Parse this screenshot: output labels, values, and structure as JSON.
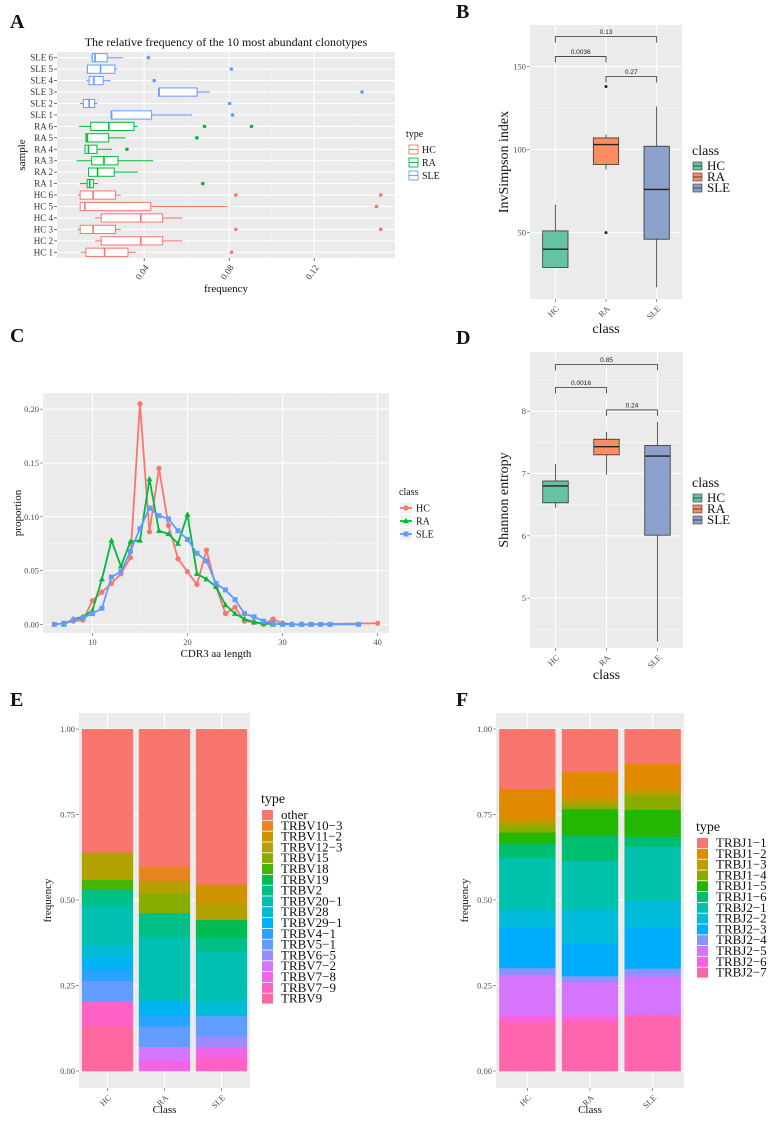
{
  "panel_labels": [
    "A",
    "B",
    "C",
    "D",
    "E",
    "F"
  ],
  "chart_data": [
    {
      "id": "A",
      "type": "boxplot-horizontal",
      "title": "The relative frequency of the 10 most abundant clonotypes",
      "xlabel": "frequency",
      "ylabel": "sample",
      "xlim": [
        -0.001,
        0.158
      ],
      "xticks": [
        0.04,
        0.08,
        0.12
      ],
      "xtick_labels": [
        "0.04",
        "0.08",
        "0.12"
      ],
      "grid": true,
      "legend": {
        "title": "type",
        "position": "right",
        "entries": [
          {
            "label": "HC",
            "color": "#F8766D"
          },
          {
            "label": "RA",
            "color": "#00BA38"
          },
          {
            "label": "SLE",
            "color": "#619CFF"
          }
        ]
      },
      "rows": [
        {
          "sample": "SLE 6",
          "type": "SLE",
          "lo": 0.0149,
          "q1": 0.0156,
          "med": 0.0169,
          "q3": 0.0226,
          "hi": 0.03,
          "outliers": [
            0.042
          ]
        },
        {
          "sample": "SLE 5",
          "type": "SLE",
          "lo": 0.013,
          "q1": 0.0133,
          "med": 0.0195,
          "q3": 0.0262,
          "hi": 0.0273,
          "outliers": [
            0.081
          ]
        },
        {
          "sample": "SLE 4",
          "type": "SLE",
          "lo": 0.0127,
          "q1": 0.0141,
          "med": 0.0164,
          "q3": 0.0207,
          "hi": 0.0242,
          "outliers": [
            0.0447
          ]
        },
        {
          "sample": "SLE 3",
          "type": "SLE",
          "lo": 0.0468,
          "q1": 0.0468,
          "med": 0.047,
          "q3": 0.0649,
          "hi": 0.071,
          "outliers": [
            0.1425
          ]
        },
        {
          "sample": "SLE 2",
          "type": "SLE",
          "lo": 0.0098,
          "q1": 0.0114,
          "med": 0.0141,
          "q3": 0.0167,
          "hi": 0.018,
          "outliers": [
            0.0802
          ]
        },
        {
          "sample": "SLE 1",
          "type": "SLE",
          "lo": 0.0245,
          "q1": 0.0245,
          "med": 0.0247,
          "q3": 0.0435,
          "hi": 0.0626,
          "outliers": [
            0.0816
          ]
        },
        {
          "sample": "RA 6",
          "type": "RA",
          "lo": 0.0094,
          "q1": 0.0149,
          "med": 0.0234,
          "q3": 0.0352,
          "hi": 0.0369,
          "outliers": [
            0.0684,
            0.0905
          ]
        },
        {
          "sample": "RA 5",
          "type": "RA",
          "lo": 0.0126,
          "q1": 0.0126,
          "med": 0.0133,
          "q3": 0.0233,
          "hi": 0.0312,
          "outliers": [
            0.0648
          ]
        },
        {
          "sample": "RA 4",
          "type": "RA",
          "lo": 0.0118,
          "q1": 0.0122,
          "med": 0.0138,
          "q3": 0.0178,
          "hi": 0.0249,
          "outliers": [
            0.0319
          ]
        },
        {
          "sample": "RA 3",
          "type": "RA",
          "lo": 0.0082,
          "q1": 0.0153,
          "med": 0.0211,
          "q3": 0.0277,
          "hi": 0.0442,
          "outliers": []
        },
        {
          "sample": "RA 2",
          "type": "RA",
          "lo": 0.0138,
          "q1": 0.0138,
          "med": 0.0181,
          "q3": 0.0259,
          "hi": 0.037,
          "outliers": []
        },
        {
          "sample": "RA 1",
          "type": "RA",
          "lo": 0.0098,
          "q1": 0.0132,
          "med": 0.0144,
          "q3": 0.0161,
          "hi": 0.0184,
          "outliers": [
            0.0676
          ]
        },
        {
          "sample": "HC 6",
          "type": "HC",
          "lo": 0.0087,
          "q1": 0.0099,
          "med": 0.016,
          "q3": 0.0265,
          "hi": 0.029,
          "outliers": [
            0.0831,
            0.1513
          ]
        },
        {
          "sample": "HC 5",
          "type": "HC",
          "lo": 0.0099,
          "q1": 0.0099,
          "med": 0.0121,
          "q3": 0.0431,
          "hi": 0.0792,
          "outliers": [
            0.1493
          ]
        },
        {
          "sample": "HC 4",
          "type": "HC",
          "lo": 0.0169,
          "q1": 0.0198,
          "med": 0.0384,
          "q3": 0.0487,
          "hi": 0.058,
          "outliers": []
        },
        {
          "sample": "HC 3",
          "type": "HC",
          "lo": 0.0087,
          "q1": 0.0099,
          "med": 0.016,
          "q3": 0.0265,
          "hi": 0.029,
          "outliers": [
            0.0831,
            0.1513
          ]
        },
        {
          "sample": "HC 2",
          "type": "HC",
          "lo": 0.0169,
          "q1": 0.0198,
          "med": 0.0384,
          "q3": 0.0487,
          "hi": 0.058,
          "outliers": []
        },
        {
          "sample": "HC 1",
          "type": "HC",
          "lo": 0.0102,
          "q1": 0.0126,
          "med": 0.0214,
          "q3": 0.0324,
          "hi": 0.0361,
          "outliers": [
            0.0811
          ]
        }
      ]
    },
    {
      "id": "B",
      "type": "boxplot",
      "xlabel": "class",
      "ylabel": "InvSimpson index",
      "ylim": [
        10,
        175
      ],
      "yticks": [
        50,
        100,
        150
      ],
      "categories": [
        "HC",
        "RA",
        "SLE"
      ],
      "legend": {
        "title": "class",
        "position": "right",
        "entries": [
          {
            "label": "HC",
            "color": "#66C2A5"
          },
          {
            "label": "RA",
            "color": "#FC8D62"
          },
          {
            "label": "SLE",
            "color": "#8DA0CB"
          }
        ]
      },
      "boxes": [
        {
          "class": "HC",
          "lo": 29,
          "q1": 29,
          "med": 40,
          "q3": 51,
          "hi": 67,
          "outliers": []
        },
        {
          "class": "RA",
          "lo": 88,
          "q1": 91,
          "med": 103,
          "q3": 107,
          "hi": 109,
          "outliers": [
            138,
            50
          ]
        },
        {
          "class": "SLE",
          "lo": 17,
          "q1": 46,
          "med": 76,
          "q3": 102,
          "hi": 126,
          "outliers": []
        }
      ],
      "comparisons": [
        {
          "from": "HC",
          "to": "SLE",
          "p": "0.13",
          "y": 168
        },
        {
          "from": "HC",
          "to": "RA",
          "p": "0.0036",
          "y": 156
        },
        {
          "from": "RA",
          "to": "SLE",
          "p": "0.27",
          "y": 144
        }
      ]
    },
    {
      "id": "C",
      "type": "line",
      "xlabel": "CDR3 aa length",
      "ylabel": "proportion",
      "xlim": [
        4.8,
        41.2
      ],
      "ylim": [
        -0.008,
        0.215
      ],
      "xticks": [
        10,
        20,
        30,
        40
      ],
      "yticks": [
        0.0,
        0.05,
        0.1,
        0.15,
        0.2
      ],
      "ytick_labels": [
        "0.00",
        "0.05",
        "0.10",
        "0.15",
        "0.20"
      ],
      "legend": {
        "title": "class",
        "position": "right"
      },
      "series": [
        {
          "name": "HC",
          "color": "#F8766D",
          "marker": "circle",
          "x": [
            7,
            8,
            9,
            10,
            11,
            12,
            13,
            14,
            15,
            16,
            17,
            18,
            19,
            20,
            21,
            22,
            23,
            24,
            25,
            26,
            27,
            28,
            29,
            30,
            31,
            40
          ],
          "y": [
            0.001,
            0.003,
            0.004,
            0.022,
            0.03,
            0.038,
            0.047,
            0.062,
            0.205,
            0.086,
            0.145,
            0.092,
            0.061,
            0.049,
            0.037,
            0.069,
            0.035,
            0.01,
            0.016,
            0.003,
            0.002,
            0.0,
            0.005,
            0.001,
            0.0,
            0.001
          ]
        },
        {
          "name": "RA",
          "color": "#00BA38",
          "marker": "triangle",
          "x": [
            7,
            8,
            9,
            10,
            11,
            12,
            13,
            14,
            15,
            16,
            17,
            18,
            19,
            20,
            21,
            22,
            23,
            24,
            25,
            26,
            27,
            28,
            29,
            30,
            31,
            32,
            33
          ],
          "y": [
            0.0,
            0.005,
            0.007,
            0.013,
            0.042,
            0.078,
            0.054,
            0.077,
            0.078,
            0.135,
            0.087,
            0.084,
            0.075,
            0.102,
            0.047,
            0.042,
            0.035,
            0.018,
            0.01,
            0.005,
            0.002,
            0.001,
            0.0,
            0.001,
            0.0,
            0.0,
            0.0
          ]
        },
        {
          "name": "SLE",
          "color": "#619CFF",
          "marker": "square",
          "x": [
            6,
            7,
            8,
            9,
            10,
            11,
            12,
            13,
            14,
            15,
            16,
            17,
            18,
            19,
            20,
            21,
            22,
            23,
            24,
            25,
            26,
            27,
            28,
            29,
            30,
            31,
            32,
            33,
            34,
            35,
            38
          ],
          "y": [
            0.0,
            0.001,
            0.004,
            0.006,
            0.01,
            0.015,
            0.044,
            0.049,
            0.068,
            0.089,
            0.108,
            0.101,
            0.098,
            0.087,
            0.079,
            0.066,
            0.059,
            0.038,
            0.032,
            0.023,
            0.01,
            0.007,
            0.003,
            0.001,
            0.0,
            0.0,
            0.0,
            0.0,
            0.0,
            0.0,
            0.0
          ]
        }
      ]
    },
    {
      "id": "D",
      "type": "boxplot",
      "xlabel": "class",
      "ylabel": "Shannon entropy",
      "ylim": [
        4.2,
        8.95
      ],
      "yticks": [
        5,
        6,
        7,
        8
      ],
      "categories": [
        "HC",
        "RA",
        "SLE"
      ],
      "legend": {
        "title": "class",
        "position": "right",
        "entries": [
          {
            "label": "HC",
            "color": "#66C2A5"
          },
          {
            "label": "RA",
            "color": "#FC8D62"
          },
          {
            "label": "SLE",
            "color": "#8DA0CB"
          }
        ]
      },
      "boxes": [
        {
          "class": "HC",
          "lo": 6.45,
          "q1": 6.53,
          "med": 6.8,
          "q3": 6.88,
          "hi": 7.15,
          "outliers": []
        },
        {
          "class": "RA",
          "lo": 6.98,
          "q1": 7.3,
          "med": 7.43,
          "q3": 7.55,
          "hi": 7.67,
          "outliers": []
        },
        {
          "class": "SLE",
          "lo": 4.3,
          "q1": 6.01,
          "med": 7.28,
          "q3": 7.45,
          "hi": 7.83,
          "outliers": []
        }
      ],
      "comparisons": [
        {
          "from": "HC",
          "to": "SLE",
          "p": "0.85",
          "y": 8.75
        },
        {
          "from": "HC",
          "to": "RA",
          "p": "0.0016",
          "y": 8.38
        },
        {
          "from": "RA",
          "to": "SLE",
          "p": "0.24",
          "y": 8.02
        }
      ]
    },
    {
      "id": "E",
      "type": "bar-stacked",
      "xlabel": "Class",
      "ylabel": "frequency",
      "ylim": [
        0,
        1
      ],
      "yticks": [
        0,
        0.25,
        0.5,
        0.75,
        1.0
      ],
      "ytick_labels": [
        "0.00",
        "0.25",
        "0.50",
        "0.75",
        "1.00"
      ],
      "categories": [
        "HC",
        "RA",
        "SLE"
      ],
      "legend": {
        "title": "type",
        "position": "right"
      },
      "types": [
        {
          "name": "other",
          "color": "#F8766D"
        },
        {
          "name": "TRBV10−3",
          "color": "#E7851E"
        },
        {
          "name": "TRBV11−2",
          "color": "#D09400"
        },
        {
          "name": "TRBV12−3",
          "color": "#B2A100"
        },
        {
          "name": "TRBV15",
          "color": "#89AC00"
        },
        {
          "name": "TRBV18",
          "color": "#45B500"
        },
        {
          "name": "TRBV19",
          "color": "#00BC51"
        },
        {
          "name": "TRBV2",
          "color": "#00C087"
        },
        {
          "name": "TRBV20−1",
          "color": "#00C0B2"
        },
        {
          "name": "TRBV28",
          "color": "#00BCD6"
        },
        {
          "name": "TRBV29−1",
          "color": "#00B3F2"
        },
        {
          "name": "TRBV4−1",
          "color": "#29A3FF"
        },
        {
          "name": "TRBV5−1",
          "color": "#619CFF"
        },
        {
          "name": "TRBV6−5",
          "color": "#9C8DFF"
        },
        {
          "name": "TRBV7−2",
          "color": "#D277FF"
        },
        {
          "name": "TRBV7−8",
          "color": "#F166E8"
        },
        {
          "name": "TRBV7−9",
          "color": "#FF61C7"
        },
        {
          "name": "TRBV9",
          "color": "#FF689E"
        }
      ],
      "series": [
        {
          "class": "HC",
          "values": {
            "other": 0.361,
            "TRBV12−3": 0.079,
            "TRBV18": 0.029,
            "TRBV2": 0.049,
            "TRBV20−1": 0.114,
            "TRBV28": 0.034,
            "TRBV29−1": 0.037,
            "TRBV4−1": 0.033,
            "TRBV5−1": 0.06,
            "TRBV7−9": 0.072,
            "TRBV9": 0.132
          }
        },
        {
          "class": "RA",
          "values": {
            "other": 0.401,
            "TRBV10−3": 0.043,
            "TRBV12−3": 0.036,
            "TRBV15": 0.058,
            "TRBV2": 0.069,
            "TRBV20−1": 0.187,
            "TRBV29−1": 0.045,
            "TRBV4−1": 0.029,
            "TRBV5−1": 0.061,
            "TRBV7−2": 0.039,
            "TRBV7−8": 0.032
          }
        },
        {
          "class": "SLE",
          "values": {
            "other": 0.454,
            "TRBV11−2": 0.056,
            "TRBV12−3": 0.048,
            "TRBV19": 0.051,
            "TRBV2": 0.042,
            "TRBV20−1": 0.145,
            "TRBV28": 0.043,
            "TRBV5−1": 0.059,
            "TRBV6−5": 0.031,
            "TRBV7−8": 0.031,
            "TRBV7−9": 0.04
          }
        }
      ]
    },
    {
      "id": "F",
      "type": "bar-stacked",
      "xlabel": "Class",
      "ylabel": "frequency",
      "ylim": [
        0,
        1
      ],
      "yticks": [
        0,
        0.25,
        0.5,
        0.75,
        1.0
      ],
      "ytick_labels": [
        "0.00",
        "0.25",
        "0.50",
        "0.75",
        "1.00"
      ],
      "categories": [
        "HC",
        "RA",
        "SLE"
      ],
      "legend": {
        "title": "type",
        "position": "right"
      },
      "types": [
        {
          "name": "TRBJ1−1",
          "color": "#F8766D"
        },
        {
          "name": "TRBJ1−2",
          "color": "#E18A00"
        },
        {
          "name": "TRBJ1−3",
          "color": "#BE9C00"
        },
        {
          "name": "TRBJ1−4",
          "color": "#8CAB00"
        },
        {
          "name": "TRBJ1−5",
          "color": "#24B700"
        },
        {
          "name": "TRBJ1−6",
          "color": "#00BE70"
        },
        {
          "name": "TRBJ2−1",
          "color": "#00C1AB"
        },
        {
          "name": "TRBJ2−2",
          "color": "#00BBDA"
        },
        {
          "name": "TRBJ2−3",
          "color": "#00ACFC"
        },
        {
          "name": "TRBJ2−4",
          "color": "#8B93FF"
        },
        {
          "name": "TRBJ2−5",
          "color": "#D575FE"
        },
        {
          "name": "TRBJ2−6",
          "color": "#F962DD"
        },
        {
          "name": "TRBJ2−7",
          "color": "#FF65AC"
        }
      ],
      "series": [
        {
          "class": "HC",
          "values": [
            0.175,
            0.087,
            0.018,
            0.022,
            0.032,
            0.042,
            0.151,
            0.055,
            0.117,
            0.02,
            0.119,
            0.018,
            0.144
          ]
        },
        {
          "class": "RA",
          "values": [
            0.124,
            0.076,
            0.02,
            0.014,
            0.078,
            0.073,
            0.142,
            0.101,
            0.094,
            0.017,
            0.1,
            0.015,
            0.146
          ]
        },
        {
          "class": "SLE",
          "values": [
            0.102,
            0.073,
            0.019,
            0.042,
            0.078,
            0.029,
            0.159,
            0.077,
            0.121,
            0.023,
            0.111,
            0.004,
            0.162
          ]
        }
      ]
    }
  ]
}
